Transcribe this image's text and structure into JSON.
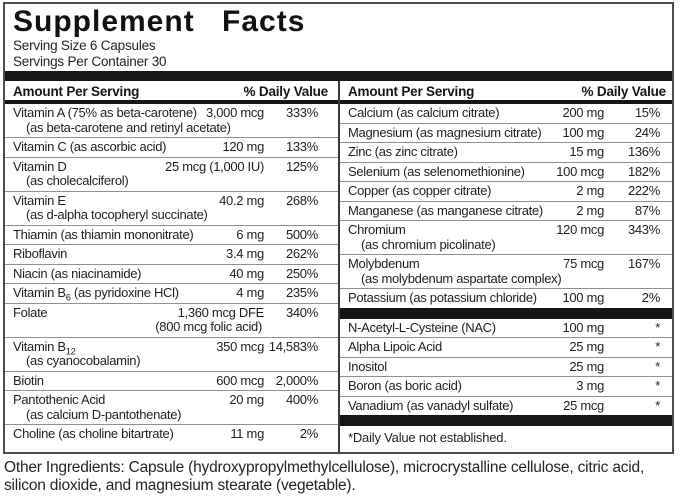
{
  "title": "Supplement Facts",
  "serving_size": "Serving Size 6 Capsules",
  "servings_per_container": "Servings Per Container 30",
  "column_header": {
    "amount": "Amount Per Serving",
    "dv": "% Daily Value"
  },
  "left_column": {
    "rows": [
      {
        "name": "Vitamin A (75% as beta-carotene)",
        "sub": "(as beta-carotene and retinyl acetate)",
        "amount": "3,000 mcg",
        "dv": "333%"
      },
      {
        "name": "Vitamin C (as ascorbic acid)",
        "amount": "120 mg",
        "dv": "133%"
      },
      {
        "name": "Vitamin D",
        "sub": "(as cholecalciferol)",
        "amount": "25 mcg (1,000 IU)",
        "dv": "125%"
      },
      {
        "name": "Vitamin E",
        "sub": "(as d-alpha tocopheryl succinate)",
        "amount": "40.2 mg",
        "dv": "268%"
      },
      {
        "name": "Thiamin (as thiamin mononitrate)",
        "amount": "6 mg",
        "dv": "500%"
      },
      {
        "name": "Riboflavin",
        "amount": "3.4 mg",
        "dv": "262%"
      },
      {
        "name": "Niacin (as niacinamide)",
        "amount": "40 mg",
        "dv": "250%"
      },
      {
        "name": "Vitamin B{6} (as pyridoxine HCl)",
        "amount": "4 mg",
        "dv": "235%"
      },
      {
        "name": "Folate",
        "amount": "1,360 mcg DFE",
        "amount_sub": "(800 mcg folic acid)",
        "dv": "340%"
      },
      {
        "name": "Vitamin B{12}",
        "sub": "(as cyanocobalamin)",
        "amount": "350 mcg",
        "dv": "14,583%"
      },
      {
        "name": "Biotin",
        "amount": "600 mcg",
        "dv": "2,000%"
      },
      {
        "name": "Pantothenic Acid",
        "sub": "(as calcium D-pantothenate)",
        "amount": "20 mg",
        "dv": "400%"
      },
      {
        "name": "Choline (as choline bitartrate)",
        "amount": "11 mg",
        "dv": "2%"
      }
    ]
  },
  "right_column": {
    "sections": [
      {
        "rows": [
          {
            "name": "Calcium (as calcium citrate)",
            "amount": "200 mg",
            "dv": "15%"
          },
          {
            "name": "Magnesium (as magnesium citrate)",
            "amount": "100 mg",
            "dv": "24%"
          },
          {
            "name": "Zinc (as zinc citrate)",
            "amount": "15 mg",
            "dv": "136%"
          },
          {
            "name": "Selenium (as selenomethionine)",
            "amount": "100 mcg",
            "dv": "182%"
          },
          {
            "name": "Copper (as copper citrate)",
            "amount": "2 mg",
            "dv": "222%"
          },
          {
            "name": "Manganese (as manganese citrate)",
            "amount": "2 mg",
            "dv": "87%"
          },
          {
            "name": "Chromium",
            "sub": "(as chromium picolinate)",
            "amount": "120 mcg",
            "dv": "343%"
          },
          {
            "name": "Molybdenum",
            "sub": "(as molybdenum aspartate complex)",
            "amount": "75 mcg",
            "dv": "167%"
          },
          {
            "name": "Potassium (as potassium chloride)",
            "amount": "100 mg",
            "dv": "2%"
          }
        ]
      },
      {
        "rows": [
          {
            "name": "N-Acetyl-L-Cysteine (NAC)",
            "amount": "100 mg",
            "dv": "*"
          },
          {
            "name": "Alpha Lipoic Acid",
            "amount": "25 mg",
            "dv": "*"
          },
          {
            "name": "Inositol",
            "amount": "25 mg",
            "dv": "*"
          },
          {
            "name": "Boron (as boric acid)",
            "amount": "3 mg",
            "dv": "*"
          },
          {
            "name": "Vanadium (as vanadyl sulfate)",
            "amount": "25 mcg",
            "dv": "*"
          }
        ]
      }
    ],
    "footnote": "*Daily Value not established."
  },
  "other_ingredients": "Other Ingredients: Capsule (hydroxypropylmethylcellulose), microcrystalline cellulose, citric acid, silicon dioxide, and magnesium stearate (vegetable).",
  "colors": {
    "text": "#1f1f1f",
    "bar": "#161616",
    "row_separator": "#909090",
    "outer_border": "#4c4c4c",
    "background": "#ffffff"
  }
}
